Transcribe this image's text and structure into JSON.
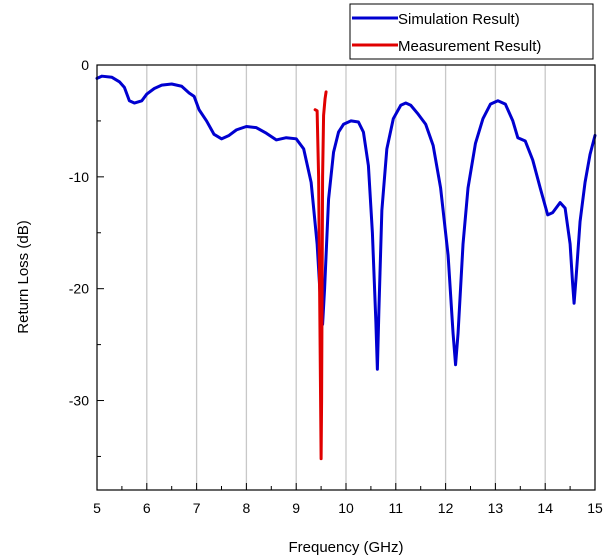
{
  "chart_data": {
    "type": "line",
    "xlabel": "Frequency (GHz)",
    "ylabel": "Return Loss (dB)",
    "xlim": [
      5,
      15
    ],
    "ylim": [
      -38,
      0
    ],
    "x_ticks": [
      5,
      6,
      7,
      8,
      9,
      10,
      11,
      12,
      13,
      14,
      15
    ],
    "x_tick_labels": [
      "5",
      "6",
      "7",
      "8",
      "9",
      "10",
      "11",
      "12",
      "13",
      "14",
      "15"
    ],
    "y_ticks": [
      0,
      -10,
      -20,
      -30
    ],
    "y_tick_labels": [
      "0",
      "-10",
      "-20",
      "-30"
    ],
    "grid": "vertical",
    "legend_position": "top-right",
    "series": [
      {
        "name": "Simulation Result)",
        "color": "#0000d0",
        "points": [
          [
            5.0,
            -1.2
          ],
          [
            5.1,
            -1.0
          ],
          [
            5.3,
            -1.1
          ],
          [
            5.45,
            -1.5
          ],
          [
            5.55,
            -2.0
          ],
          [
            5.65,
            -3.2
          ],
          [
            5.75,
            -3.4
          ],
          [
            5.9,
            -3.2
          ],
          [
            6.0,
            -2.6
          ],
          [
            6.15,
            -2.1
          ],
          [
            6.3,
            -1.8
          ],
          [
            6.5,
            -1.7
          ],
          [
            6.7,
            -1.9
          ],
          [
            6.85,
            -2.5
          ],
          [
            6.95,
            -2.8
          ],
          [
            7.05,
            -4.0
          ],
          [
            7.2,
            -5.0
          ],
          [
            7.35,
            -6.2
          ],
          [
            7.5,
            -6.6
          ],
          [
            7.65,
            -6.3
          ],
          [
            7.8,
            -5.8
          ],
          [
            8.0,
            -5.5
          ],
          [
            8.2,
            -5.6
          ],
          [
            8.4,
            -6.1
          ],
          [
            8.6,
            -6.7
          ],
          [
            8.8,
            -6.5
          ],
          [
            9.0,
            -6.6
          ],
          [
            9.15,
            -7.5
          ],
          [
            9.3,
            -10.5
          ],
          [
            9.42,
            -16.0
          ],
          [
            9.5,
            -22.0
          ],
          [
            9.53,
            -23.2
          ],
          [
            9.57,
            -20.0
          ],
          [
            9.65,
            -12.0
          ],
          [
            9.75,
            -7.8
          ],
          [
            9.85,
            -6.0
          ],
          [
            9.95,
            -5.3
          ],
          [
            10.1,
            -5.0
          ],
          [
            10.25,
            -5.1
          ],
          [
            10.35,
            -6.0
          ],
          [
            10.45,
            -9.0
          ],
          [
            10.53,
            -15.0
          ],
          [
            10.6,
            -23.0
          ],
          [
            10.63,
            -27.2
          ],
          [
            10.66,
            -22.0
          ],
          [
            10.72,
            -13.0
          ],
          [
            10.82,
            -7.5
          ],
          [
            10.95,
            -4.8
          ],
          [
            11.1,
            -3.6
          ],
          [
            11.2,
            -3.4
          ],
          [
            11.3,
            -3.6
          ],
          [
            11.45,
            -4.4
          ],
          [
            11.6,
            -5.3
          ],
          [
            11.75,
            -7.2
          ],
          [
            11.9,
            -11.0
          ],
          [
            12.05,
            -17.0
          ],
          [
            12.15,
            -24.0
          ],
          [
            12.2,
            -26.8
          ],
          [
            12.25,
            -24.0
          ],
          [
            12.35,
            -16.0
          ],
          [
            12.45,
            -11.0
          ],
          [
            12.6,
            -7.0
          ],
          [
            12.75,
            -4.8
          ],
          [
            12.9,
            -3.5
          ],
          [
            13.05,
            -3.2
          ],
          [
            13.2,
            -3.5
          ],
          [
            13.35,
            -5.0
          ],
          [
            13.45,
            -6.5
          ],
          [
            13.6,
            -6.8
          ],
          [
            13.75,
            -8.5
          ],
          [
            13.9,
            -11.0
          ],
          [
            14.05,
            -13.4
          ],
          [
            14.15,
            -13.2
          ],
          [
            14.3,
            -12.3
          ],
          [
            14.4,
            -12.8
          ],
          [
            14.5,
            -16.0
          ],
          [
            14.55,
            -19.5
          ],
          [
            14.58,
            -21.3
          ],
          [
            14.62,
            -19.0
          ],
          [
            14.7,
            -14.0
          ],
          [
            14.8,
            -10.5
          ],
          [
            14.9,
            -8.0
          ],
          [
            15.0,
            -6.3
          ]
        ]
      },
      {
        "name": "Measurement Result)",
        "color": "#e00000",
        "points": [
          [
            9.38,
            -4.0
          ],
          [
            9.42,
            -4.1
          ],
          [
            9.45,
            -10.0
          ],
          [
            9.47,
            -20.0
          ],
          [
            9.49,
            -30.0
          ],
          [
            9.5,
            -35.2
          ],
          [
            9.51,
            -30.0
          ],
          [
            9.52,
            -20.0
          ],
          [
            9.53,
            -10.0
          ],
          [
            9.55,
            -4.5
          ],
          [
            9.58,
            -3.0
          ],
          [
            9.6,
            -2.4
          ]
        ]
      }
    ]
  }
}
